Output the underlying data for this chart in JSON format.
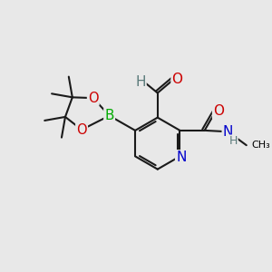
{
  "bg_color": "#e8e8e8",
  "atom_colors": {
    "C": "#000000",
    "H": "#5a7a7a",
    "O": "#cc0000",
    "N": "#0000cc",
    "B": "#00aa00"
  },
  "bond_color": "#1a1a1a",
  "bond_width": 1.5
}
